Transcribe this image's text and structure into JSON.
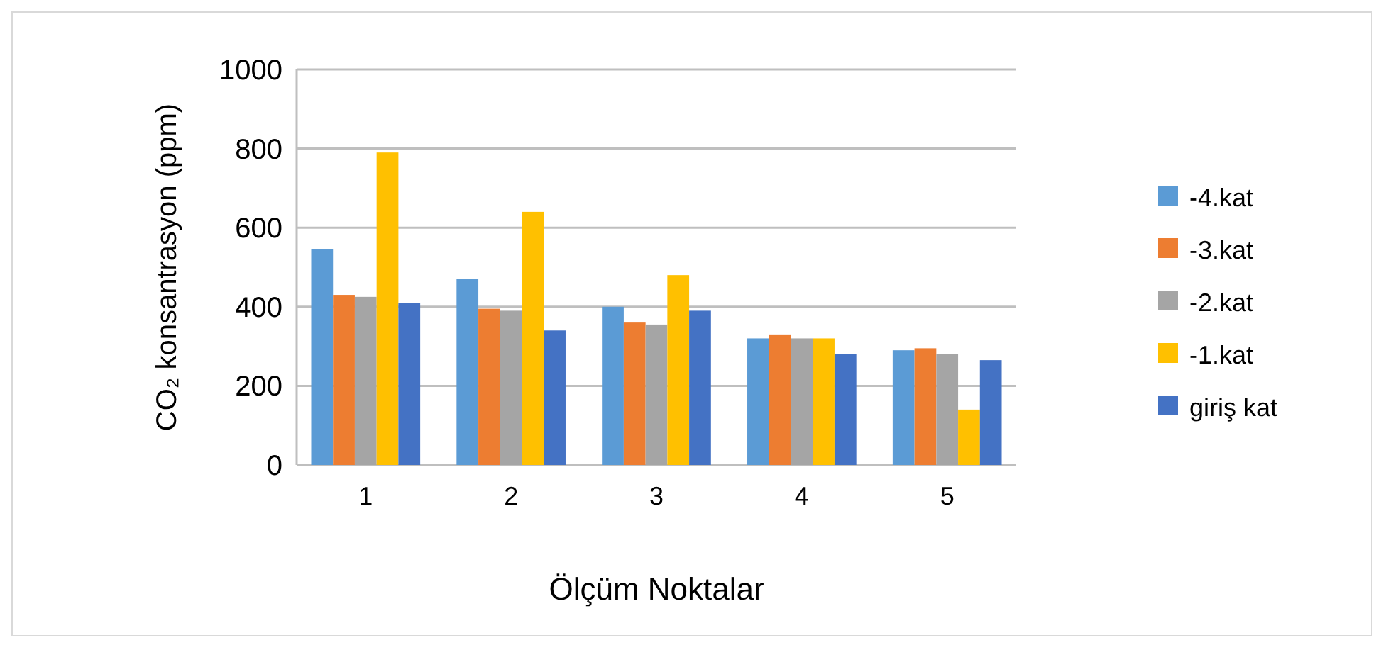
{
  "chart_data": {
    "type": "bar",
    "xlabel": "Ölçüm Noktalar",
    "ylabel": "CO₂ konsantrasyon  (ppm)",
    "categories": [
      "1",
      "2",
      "3",
      "4",
      "5"
    ],
    "series": [
      {
        "name": "-4.kat",
        "color": "#5b9bd5",
        "values": [
          545,
          470,
          400,
          320,
          290
        ]
      },
      {
        "name": "-3.kat",
        "color": "#ed7d31",
        "values": [
          430,
          395,
          360,
          330,
          295
        ]
      },
      {
        "name": "-2.kat",
        "color": "#a5a5a5",
        "values": [
          425,
          390,
          355,
          320,
          280
        ]
      },
      {
        "name": "-1.kat",
        "color": "#ffc000",
        "values": [
          790,
          640,
          480,
          320,
          140
        ]
      },
      {
        "name": "giriş kat",
        "color": "#4472c4",
        "values": [
          410,
          340,
          390,
          280,
          265
        ]
      }
    ],
    "ylim": [
      0,
      1000
    ],
    "yticks": [
      0,
      200,
      400,
      600,
      800,
      1000
    ],
    "grid": "y",
    "legend": "right"
  }
}
